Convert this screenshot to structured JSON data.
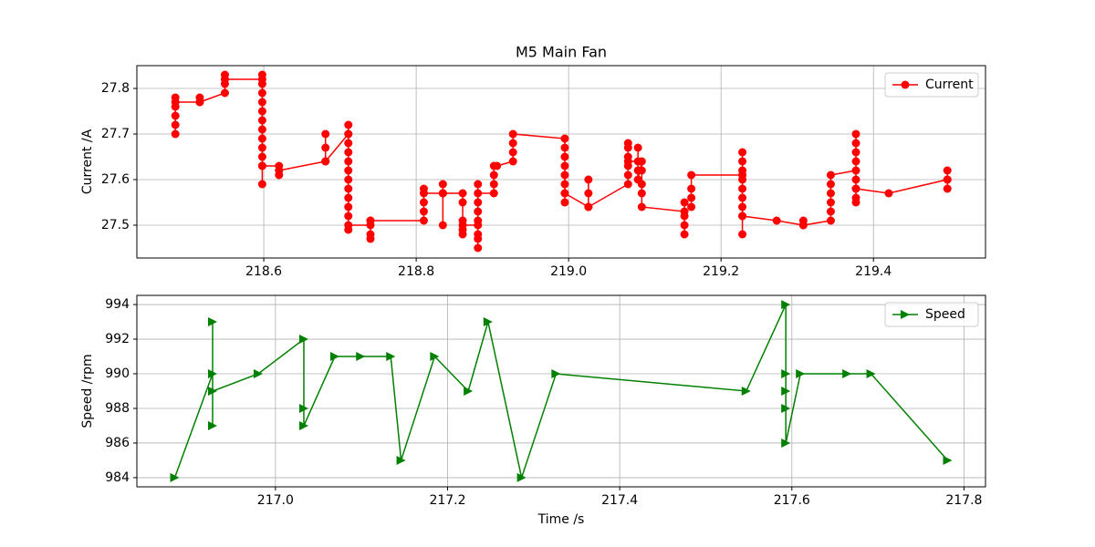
{
  "chart_data": [
    {
      "type": "line",
      "title": "M5 Main Fan",
      "ylabel": "Current /A",
      "xlim": [
        218.4335,
        219.547
      ],
      "ylim": [
        27.428,
        27.85
      ],
      "xticks": [
        218.6,
        218.8,
        {
          "value": 219,
          "label": "219.0"
        },
        219.2,
        219.4
      ],
      "yticks": [
        27.5,
        27.6,
        27.7,
        27.8
      ],
      "grid": true,
      "legend": "upper right",
      "series": [
        {
          "name": "Current",
          "color": "#ff0000",
          "marker": "circle",
          "x": [
            218.484,
            218.484,
            218.484,
            218.484,
            218.484,
            218.484,
            218.516,
            218.516,
            218.516,
            218.549,
            218.549,
            218.549,
            218.549,
            218.598,
            218.598,
            218.598,
            218.598,
            218.598,
            218.598,
            218.598,
            218.598,
            218.598,
            218.598,
            218.598,
            218.598,
            218.598,
            218.598,
            218.62,
            218.62,
            218.62,
            218.681,
            218.681,
            218.681,
            218.681,
            218.711,
            218.711,
            218.711,
            218.711,
            218.711,
            218.711,
            218.711,
            218.711,
            218.711,
            218.711,
            218.711,
            218.711,
            218.711,
            218.711,
            218.74,
            218.74,
            218.74,
            218.74,
            218.74,
            218.81,
            218.81,
            218.81,
            218.81,
            218.81,
            218.835,
            218.835,
            218.835,
            218.835,
            218.835,
            218.861,
            218.861,
            218.861,
            218.861,
            218.861,
            218.861,
            218.881,
            218.881,
            218.881,
            218.881,
            218.881,
            218.881,
            218.881,
            218.881,
            218.881,
            218.902,
            218.902,
            218.902,
            218.902,
            218.906,
            218.927,
            218.927,
            218.927,
            218.927,
            218.995,
            218.995,
            218.995,
            218.995,
            218.995,
            218.995,
            218.995,
            218.995,
            218.995,
            219.026,
            219.026,
            219.026,
            219.026,
            219.078,
            219.078,
            219.078,
            219.078,
            219.078,
            219.078,
            219.078,
            219.091,
            219.091,
            219.091,
            219.091,
            219.096,
            219.096,
            219.096,
            219.096,
            219.096,
            219.152,
            219.152,
            219.152,
            219.152,
            219.152,
            219.161,
            219.161,
            219.161,
            219.161,
            219.228,
            219.228,
            219.228,
            219.228,
            219.228,
            219.228,
            219.228,
            219.228,
            219.228,
            219.228,
            219.228,
            219.273,
            219.308,
            219.308,
            219.308,
            219.344,
            219.344,
            219.344,
            219.344,
            219.344,
            219.344,
            219.377,
            219.377,
            219.377,
            219.377,
            219.377,
            219.377,
            219.377,
            219.377,
            219.377,
            219.377,
            219.42,
            219.497,
            219.497,
            219.497,
            219.497
          ],
          "values": [
            27.7,
            27.72,
            27.74,
            27.76,
            27.78,
            27.77,
            27.77,
            27.78,
            27.77,
            27.79,
            27.81,
            27.83,
            27.82,
            27.82,
            27.83,
            27.81,
            27.79,
            27.77,
            27.75,
            27.73,
            27.71,
            27.69,
            27.67,
            27.65,
            27.63,
            27.59,
            27.63,
            27.63,
            27.61,
            27.62,
            27.64,
            27.67,
            27.7,
            27.64,
            27.7,
            27.72,
            27.7,
            27.68,
            27.66,
            27.64,
            27.62,
            27.6,
            27.58,
            27.56,
            27.54,
            27.52,
            27.49,
            27.5,
            27.5,
            27.51,
            27.48,
            27.47,
            27.51,
            27.51,
            27.53,
            27.55,
            27.58,
            27.57,
            27.57,
            27.5,
            27.57,
            27.59,
            27.57,
            27.57,
            27.55,
            27.51,
            27.49,
            27.48,
            27.5,
            27.5,
            27.47,
            27.45,
            27.48,
            27.51,
            27.53,
            27.55,
            27.59,
            27.57,
            27.57,
            27.59,
            27.61,
            27.63,
            27.63,
            27.64,
            27.66,
            27.68,
            27.7,
            27.69,
            27.67,
            27.65,
            27.63,
            27.61,
            27.59,
            27.57,
            27.55,
            27.57,
            27.54,
            27.57,
            27.6,
            27.54,
            27.59,
            27.61,
            27.63,
            27.65,
            27.67,
            27.68,
            27.64,
            27.64,
            27.67,
            27.62,
            27.6,
            27.64,
            27.62,
            27.59,
            27.57,
            27.54,
            27.53,
            27.48,
            27.5,
            27.52,
            27.55,
            27.54,
            27.56,
            27.58,
            27.61,
            27.61,
            27.66,
            27.64,
            27.62,
            27.6,
            27.58,
            27.56,
            27.54,
            27.52,
            27.48,
            27.52,
            27.51,
            27.5,
            27.51,
            27.5,
            27.51,
            27.53,
            27.55,
            27.57,
            27.59,
            27.61,
            27.62,
            27.64,
            27.66,
            27.68,
            27.7,
            27.6,
            27.58,
            27.56,
            27.55,
            27.58,
            27.57,
            27.6,
            27.58,
            27.62,
            27.6
          ]
        }
      ]
    },
    {
      "type": "line",
      "xlabel": "Time /s",
      "ylabel": "Speed /rpm",
      "xlim": [
        216.839,
        217.825
      ],
      "ylim": [
        983.47,
        994.53
      ],
      "xticks": [
        {
          "value": 217,
          "label": "217.0"
        },
        217.2,
        217.4,
        217.6,
        217.8
      ],
      "yticks": [
        984,
        986,
        988,
        990,
        992,
        994
      ],
      "grid": true,
      "legend": "upper right",
      "series": [
        {
          "name": "Speed",
          "color": "#008000",
          "marker": "triangle-right",
          "x": [
            216.883,
            216.927,
            216.927,
            216.927,
            216.927,
            216.98,
            217.033,
            217.033,
            217.033,
            217.069,
            217.099,
            217.134,
            217.146,
            217.185,
            217.224,
            217.247,
            217.286,
            217.326,
            217.547,
            217.593,
            217.593,
            217.593,
            217.593,
            217.593,
            217.61,
            217.664,
            217.692,
            217.781
          ],
          "values": [
            984,
            990,
            993,
            987,
            989,
            990,
            992,
            988,
            987,
            991,
            991,
            991,
            985,
            991,
            989,
            993,
            984,
            990,
            989,
            994,
            990,
            989,
            988,
            986,
            990,
            990,
            990,
            985
          ]
        }
      ]
    }
  ]
}
